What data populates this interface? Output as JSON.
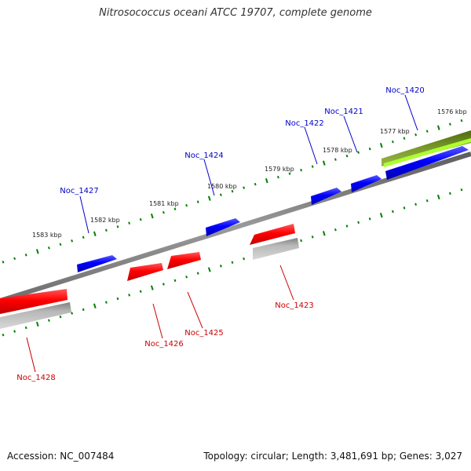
{
  "title": "Nitrosococcus oceani ATCC 19707, complete genome",
  "footer": {
    "accession": "Accession: NC_007484",
    "stats": "Topology: circular; Length: 3,481,691 bp; Genes: 3,027"
  },
  "colors": {
    "forward": "#0000ff",
    "reverse": "#ff0000",
    "pseudo": "#c0c0c0",
    "rna": "#6b8e23",
    "rna_highlight": "#adff2f",
    "backbone": "#808080",
    "tick": "#008000"
  },
  "scale_labels": [
    "1583 kbp",
    "1582 kbp",
    "1581 kbp",
    "1580 kbp",
    "1579 kbp",
    "1578 kbp",
    "1577 kbp",
    "1576 kbp"
  ],
  "gene_labels": [
    {
      "text": "Noc_1420",
      "strand": "forward"
    },
    {
      "text": "Noc_1421",
      "strand": "forward"
    },
    {
      "text": "Noc_1422",
      "strand": "forward"
    },
    {
      "text": "Noc_1424",
      "strand": "forward"
    },
    {
      "text": "Noc_1427",
      "strand": "forward"
    },
    {
      "text": "Noc_1423",
      "strand": "reverse"
    },
    {
      "text": "Noc_1425",
      "strand": "reverse"
    },
    {
      "text": "Noc_1426",
      "strand": "reverse"
    },
    {
      "text": "Noc_1428",
      "strand": "reverse"
    }
  ]
}
